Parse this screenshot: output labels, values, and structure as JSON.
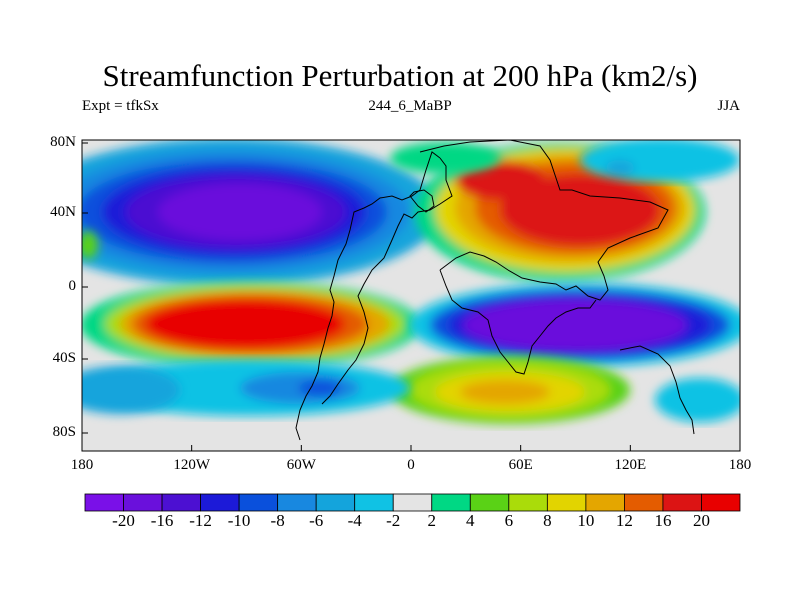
{
  "title": "Streamfunction Perturbation at 200 hPa (km2/s)",
  "subtitle_left": "Expt = tfkSx",
  "subtitle_center": "244_6_MaBP",
  "subtitle_right": "JJA",
  "chart_data": {
    "type": "heatmap",
    "x_ticks": [
      "180",
      "120W",
      "60W",
      "0",
      "60E",
      "120E",
      "180"
    ],
    "y_ticks": [
      "80N",
      "40N",
      "0",
      "40S",
      "80S"
    ],
    "x_range": [
      -180,
      180
    ],
    "y_range": [
      -90,
      90
    ],
    "levels": [
      -20,
      -16,
      -12,
      -10,
      -8,
      -6,
      -4,
      -2,
      2,
      4,
      6,
      8,
      10,
      12,
      16,
      20
    ],
    "level_labels": [
      "-20",
      "-16",
      "-12",
      "-10",
      "-8",
      "-6",
      "-4",
      "-2",
      "2",
      "4",
      "6",
      "8",
      "10",
      "12",
      "16",
      "20"
    ],
    "colors": [
      "#7a10e8",
      "#6a10dc",
      "#4c10d2",
      "#1c1ad8",
      "#0a50dc",
      "#1888e0",
      "#14a4dc",
      "#10c2e4",
      "#e4e4e4",
      "#00d884",
      "#5ad216",
      "#aadc0a",
      "#e2d400",
      "#e4a600",
      "#e45c00",
      "#dc1414",
      "#e80000"
    ],
    "features": [
      {
        "name": "north_pacific_low",
        "lon": -105,
        "lat": 45,
        "peak": -20
      },
      {
        "name": "south_pacific_high",
        "lon": -95,
        "lat": -20,
        "peak": 20
      },
      {
        "name": "asia_high",
        "lon": 85,
        "lat": 40,
        "peak": 20
      },
      {
        "name": "indian_ocean_low",
        "lon": 80,
        "lat": -20,
        "peak": -20
      },
      {
        "name": "south_atlantic_high",
        "lon": 70,
        "lat": -58,
        "peak": 12
      }
    ]
  }
}
